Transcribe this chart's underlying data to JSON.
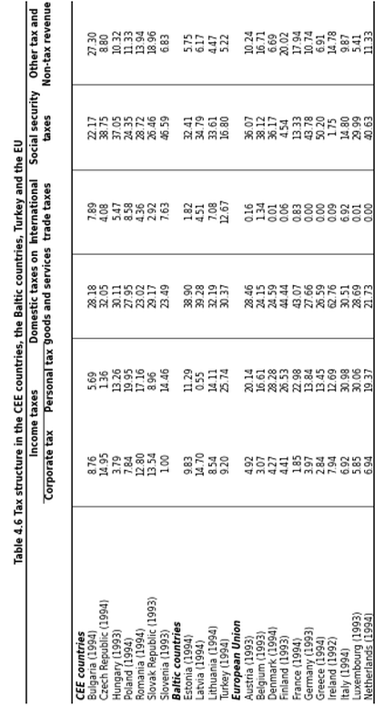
{
  "title": "Table 4.6 Tax structure in the CEE countries, the Baltic countries, Turkey and the EU",
  "sections": [
    {
      "name": "CEE countries",
      "rows": [
        {
          "label": "Bulgaria (1994)",
          "corp": "8.76",
          "pers": "5.69",
          "dom": "28.18",
          "intl": "7.89",
          "soc": "22.17",
          "other": "27.30"
        },
        {
          "label": "Czech Republic (1994)",
          "corp": "14.95",
          "pers": "1.36",
          "dom": "32.05",
          "intl": "4.08",
          "soc": "38.75",
          "other": "8.80"
        },
        {
          "label": "Hungary (1993)",
          "corp": "3.79",
          "pers": "13.26",
          "dom": "30.11",
          "intl": "5.47",
          "soc": "37.05",
          "other": "10.32"
        },
        {
          "label": "Poland (1994)",
          "corp": "7.84",
          "pers": "19.95",
          "dom": "27.95",
          "intl": "8.58",
          "soc": "24.35",
          "other": "11.33"
        },
        {
          "label": "Romania (1994)",
          "corp": "12.80",
          "pers": "17.16",
          "dom": "23.02",
          "intl": "4.36",
          "soc": "28.72",
          "other": "13.94"
        },
        {
          "label": "Slovak Republic (1993)",
          "corp": "13.54",
          "pers": "8.96",
          "dom": "29.17",
          "intl": "2.92",
          "soc": "26.46",
          "other": "18.96"
        },
        {
          "label": "Slovenia (1993)",
          "corp": "1.00",
          "pers": "14.46",
          "dom": "23.49",
          "intl": "7.63",
          "soc": "46.59",
          "other": "6.83"
        }
      ]
    },
    {
      "name": "Baltic countries",
      "rows": [
        {
          "label": "Estonia (1994)",
          "corp": "9.83",
          "pers": "11.29",
          "dom": "38.90",
          "intl": "1.82",
          "soc": "32.41",
          "other": "5.75"
        },
        {
          "label": "Latvia (1994)",
          "corp": "14.70",
          "pers": "0.55",
          "dom": "39.28",
          "intl": "4.51",
          "soc": "34.79",
          "other": "6.17"
        },
        {
          "label": "Lithuania (1994)",
          "corp": "8.54",
          "pers": "14.11",
          "dom": "32.19",
          "intl": "7.08",
          "soc": "33.61",
          "other": "4.47"
        },
        {
          "label": "Turkey (1994)",
          "corp": "9.20",
          "pers": "25.74",
          "dom": "30.37",
          "intl": "12.67",
          "soc": "16.80",
          "other": "5.22"
        }
      ]
    },
    {
      "name": "European Union",
      "rows": [
        {
          "label": "Austria (1993)",
          "corp": "4.92",
          "pers": "20.14",
          "dom": "28.46",
          "intl": "0.16",
          "soc": "36.07",
          "other": "10.24"
        },
        {
          "label": "Belgium (1993)",
          "corp": "3.07",
          "pers": "16.61",
          "dom": "24.15",
          "intl": "1.34",
          "soc": "38.12",
          "other": "16.71"
        },
        {
          "label": "Denmark (1994)",
          "corp": "4.27",
          "pers": "28.28",
          "dom": "24.59",
          "intl": "0.01",
          "soc": "36.17",
          "other": "6.69"
        },
        {
          "label": "Finland (1993)",
          "corp": "4.41",
          "pers": "26.53",
          "dom": "44.44",
          "intl": "0.06",
          "soc": "4.54",
          "other": "20.02"
        },
        {
          "label": "France (1994)",
          "corp": "1.85",
          "pers": "22.98",
          "dom": "43.07",
          "intl": "0.83",
          "soc": "13.33",
          "other": "17.94"
        },
        {
          "label": "Germany (1993)",
          "corp": "3.97",
          "pers": "13.84",
          "dom": "27.66",
          "intl": "0.00",
          "soc": "43.78",
          "other": "10.74"
        },
        {
          "label": "Greece (1994)",
          "corp": "2.84",
          "pers": "13.45",
          "dom": "26.59",
          "intl": "0.00",
          "soc": "50.20",
          "other": "6.91"
        },
        {
          "label": "Ireland (1992)",
          "corp": "7.94",
          "pers": "12.69",
          "dom": "62.76",
          "intl": "0.09",
          "soc": "1.75",
          "other": "14.78"
        },
        {
          "label": "Italy (1994)",
          "corp": "6.92",
          "pers": "30.98",
          "dom": "30.51",
          "intl": "6.92",
          "soc": "14.80",
          "other": "9.87"
        },
        {
          "label": "Luxembourg (1993)",
          "corp": "5.85",
          "pers": "30.06",
          "dom": "28.69",
          "intl": "0.01",
          "soc": "29.99",
          "other": "5.41"
        },
        {
          "label": "Netherlands (1994)",
          "corp": "6.94",
          "pers": "19.37",
          "dom": "21.73",
          "intl": "0.00",
          "soc": "40.63",
          "other": "11.33"
        }
      ]
    }
  ],
  "bg_color": "#ffffff",
  "text_color": "#000000",
  "title_fontsize": 5.5,
  "header_fontsize": 5.5,
  "cell_fontsize": 5.5,
  "section_fontsize": 5.5
}
